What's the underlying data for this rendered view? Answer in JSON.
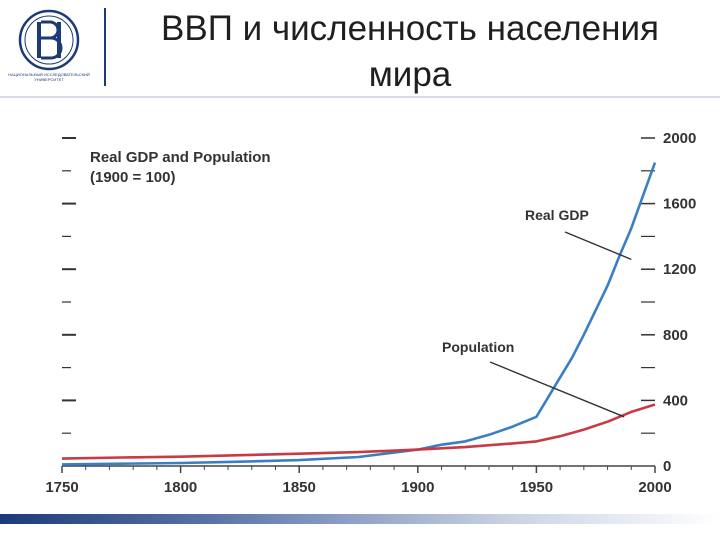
{
  "slide": {
    "title_line1": "ВВП и численность населения",
    "title_line2": "мира",
    "logo_caption": "НАЦИОНАЛЬНЫЙ ИССЛЕДОВАТЕЛЬСКИЙ УНИВЕРСИТЕТ"
  },
  "chart_data": {
    "type": "line",
    "title": "Real GDP and Population",
    "subtitle": "(1900 = 100)",
    "xlabel": "",
    "ylabel": "",
    "xlim": [
      1750,
      2000
    ],
    "ylim": [
      0,
      2000
    ],
    "x_ticks": [
      1750,
      1800,
      1850,
      1900,
      1950,
      2000
    ],
    "y_ticks": [
      0,
      400,
      800,
      1200,
      1600,
      2000
    ],
    "grid": false,
    "legend": "none",
    "series": [
      {
        "name": "Real GDP",
        "color": "#3a7fc4",
        "x": [
          1750,
          1775,
          1800,
          1825,
          1850,
          1875,
          1900,
          1910,
          1920,
          1930,
          1940,
          1950,
          1955,
          1960,
          1965,
          1970,
          1975,
          1980,
          1985,
          1990,
          1995,
          2000
        ],
        "y": [
          10,
          14,
          18,
          26,
          36,
          55,
          100,
          130,
          150,
          190,
          240,
          300,
          420,
          540,
          660,
          800,
          950,
          1100,
          1280,
          1450,
          1650,
          1850
        ]
      },
      {
        "name": "Population",
        "color": "#c83a44",
        "x": [
          1750,
          1775,
          1800,
          1825,
          1850,
          1875,
          1900,
          1920,
          1940,
          1950,
          1960,
          1970,
          1980,
          1990,
          2000
        ],
        "y": [
          45,
          52,
          57,
          66,
          75,
          85,
          100,
          115,
          138,
          150,
          182,
          222,
          270,
          330,
          375
        ]
      }
    ],
    "annotations": [
      {
        "text": "Real GDP",
        "target_x": 1990,
        "target_y": 1260
      },
      {
        "text": "Population",
        "target_x": 1987,
        "target_y": 300
      }
    ]
  }
}
